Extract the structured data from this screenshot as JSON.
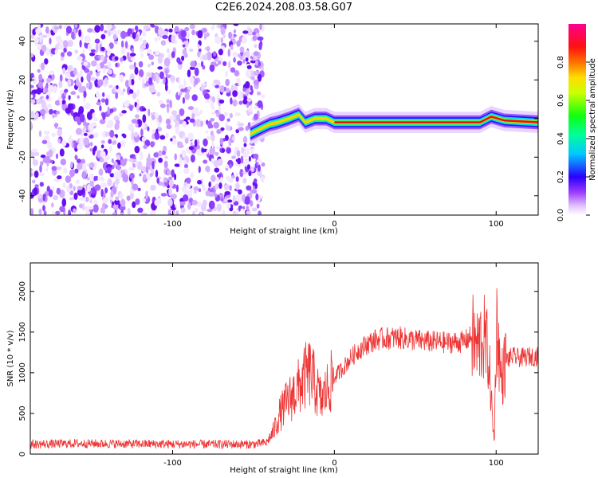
{
  "figure_title": "C2E6.2024.208.03.58.G07",
  "chart_data": [
    {
      "type": "heatmap",
      "xlabel": "Height of straight line (km)",
      "ylabel": "Frequency (Hz)",
      "xlim": [
        -188,
        126
      ],
      "ylim": [
        -50,
        49
      ],
      "xticks": [
        -100,
        0,
        100
      ],
      "yticks": [
        -40,
        -20,
        0,
        20,
        40
      ],
      "colorbar": {
        "label": "Normalized spectral amplitude",
        "range": [
          0.0,
          1.0
        ],
        "ticks": [
          0.0,
          0.2,
          0.4,
          0.6,
          0.8
        ]
      },
      "noise_region": {
        "x_range": [
          -188,
          -50
        ],
        "amplitude": "low (0.0-0.1)"
      },
      "ridge": [
        {
          "x": -52,
          "y": -8
        },
        {
          "x": -45,
          "y": -5
        },
        {
          "x": -40,
          "y": -3
        },
        {
          "x": -35,
          "y": -2
        },
        {
          "x": -28,
          "y": 0
        },
        {
          "x": -22,
          "y": 2
        },
        {
          "x": -18,
          "y": -2
        },
        {
          "x": -12,
          "y": 0
        },
        {
          "x": -5,
          "y": 0
        },
        {
          "x": 0,
          "y": -2
        },
        {
          "x": 20,
          "y": -2
        },
        {
          "x": 40,
          "y": -2
        },
        {
          "x": 60,
          "y": -2
        },
        {
          "x": 85,
          "y": -2
        },
        {
          "x": 90,
          "y": -2
        },
        {
          "x": 97,
          "y": 1
        },
        {
          "x": 105,
          "y": -1
        },
        {
          "x": 126,
          "y": -2
        }
      ]
    },
    {
      "type": "line",
      "xlabel": "Height of straight line (km)",
      "ylabel": "SNR (10 * v/v)",
      "xlim": [
        -188,
        126
      ],
      "ylim": [
        0,
        2350
      ],
      "xticks": [
        -100,
        0,
        100
      ],
      "yticks": [
        0,
        500,
        1000,
        1500,
        2000
      ],
      "series": [
        {
          "color": "#ee3333",
          "x": [
            -188,
            -160,
            -120,
            -80,
            -50,
            -42,
            -38,
            -34,
            -30,
            -26,
            -22,
            -18,
            -15,
            -12,
            -8,
            -4,
            0,
            5,
            10,
            15,
            20,
            25,
            30,
            40,
            50,
            60,
            70,
            80,
            85,
            88,
            92,
            95,
            97,
            98,
            99,
            100,
            101,
            103,
            106,
            110,
            115,
            120,
            126
          ],
          "y": [
            120,
            130,
            125,
            120,
            120,
            140,
            260,
            480,
            620,
            720,
            820,
            950,
            1000,
            850,
            650,
            820,
            950,
            1050,
            1180,
            1280,
            1350,
            1400,
            1420,
            1430,
            1400,
            1380,
            1370,
            1380,
            1450,
            1300,
            1450,
            1250,
            700,
            300,
            200,
            1600,
            1500,
            900,
            1150,
            1200,
            1180,
            1200,
            1200
          ]
        }
      ]
    }
  ]
}
